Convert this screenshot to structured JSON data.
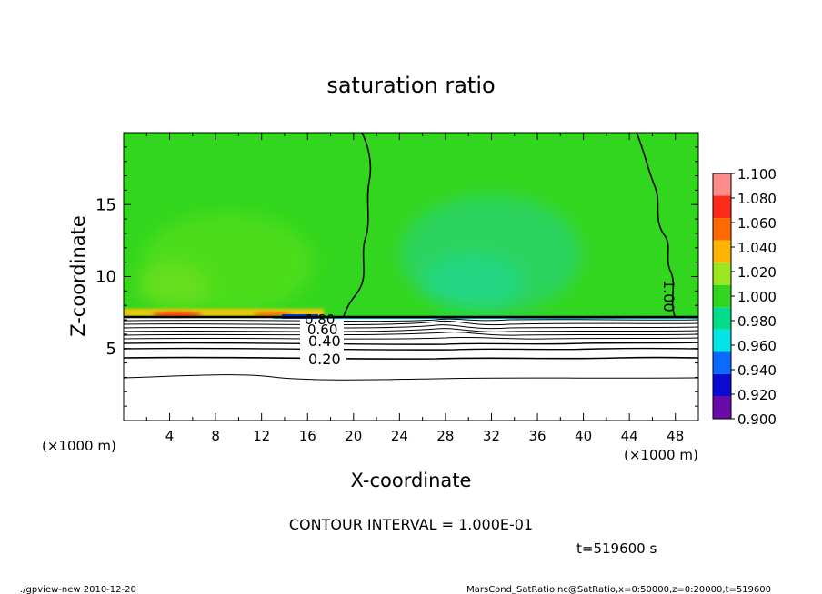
{
  "chart_data": {
    "type": "heatmap",
    "title": "saturation ratio",
    "xlabel": "X-coordinate",
    "ylabel": "Z-coordinate",
    "x_unit_left": "(×1000 m)",
    "x_unit_right": "(×1000 m)",
    "xlim": [
      0,
      50
    ],
    "ylim": [
      0,
      20
    ],
    "x_ticks": [
      "4",
      "8",
      "12",
      "16",
      "20",
      "24",
      "28",
      "32",
      "36",
      "40",
      "44",
      "48"
    ],
    "y_ticks": [
      "5",
      "10",
      "15"
    ],
    "colorbar": {
      "levels": [
        "1.100",
        "1.080",
        "1.060",
        "1.040",
        "1.020",
        "1.000",
        "0.980",
        "0.960",
        "0.940",
        "0.920",
        "0.900"
      ],
      "colors": [
        "#ff8c8c",
        "#ff2a1a",
        "#ff6a00",
        "#ffb400",
        "#9be61e",
        "#33d61e",
        "#00dd8c",
        "#00e6e6",
        "#0a6aff",
        "#0a0ad2",
        "#6a0aa8"
      ]
    },
    "background_value": 1.0,
    "contour_levels_labeled": [
      "0.20",
      "0.40",
      "0.60",
      "0.80",
      "1.00"
    ],
    "contour_label_1": "1.00",
    "contour_interval": "CONTOUR INTERVAL = 1.000E-01",
    "time": "t=519600 s",
    "footer_left": "./gpview-new   2010-12-20",
    "footer_right": "MarsCond_SatRatio.nc@SatRatio,x=0:50000,z=0:20000,t=519600"
  }
}
